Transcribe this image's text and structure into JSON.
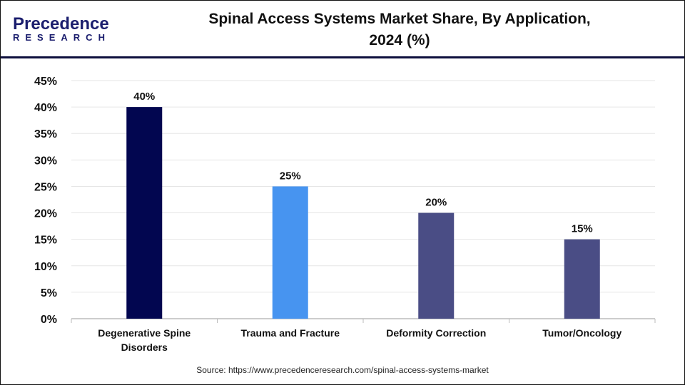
{
  "header": {
    "title_line1": "Spinal Access Systems Market Share, By Application,",
    "title_line2": "2024 (%)",
    "logo_line1": "Precedence",
    "logo_line2": "RESEARCH"
  },
  "source": "Source: https://www.precedenceresearch.com/spinal-access-systems-market",
  "chart_data": {
    "type": "bar",
    "title": "Spinal Access Systems Market Share, By Application, 2024 (%)",
    "categories": [
      "Degenerative Spine Disorders",
      "Trauma and Fracture",
      "Deformity Correction",
      "Tumor/Oncology"
    ],
    "values": [
      40,
      25,
      20,
      15
    ],
    "data_labels": [
      "40%",
      "25%",
      "20%",
      "15%"
    ],
    "colors": [
      "#020650",
      "#4794f0",
      "#4a4d85",
      "#4a4d85"
    ],
    "ylim": [
      0,
      45
    ],
    "yticks": [
      "0%",
      "5%",
      "10%",
      "15%",
      "20%",
      "25%",
      "30%",
      "35%",
      "40%",
      "45%"
    ],
    "grid": true,
    "xlabel": "",
    "ylabel": ""
  }
}
